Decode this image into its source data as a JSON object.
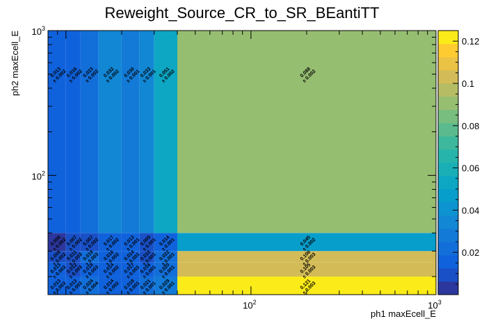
{
  "chart_data": {
    "type": "heatmap",
    "title": "Reweight_Source_CR_to_SR_BEantiTT",
    "xlabel": "ph1 maxEcell_E",
    "ylabel": "ph2 maxEcell_E",
    "xscale": "log",
    "yscale": "log",
    "xlim": [
      8,
      1000
    ],
    "ylim": [
      15,
      1000
    ],
    "x_ticks": [
      {
        "value": 100,
        "base": "10",
        "exp": "2"
      },
      {
        "value": 1000,
        "base": "10",
        "exp": "3"
      }
    ],
    "y_ticks": [
      {
        "value": 100,
        "base": "10",
        "exp": "2"
      },
      {
        "value": 1000,
        "base": "10",
        "exp": "3"
      }
    ],
    "x_edges": [
      8,
      10,
      12,
      15,
      20,
      25,
      30,
      40,
      1000
    ],
    "y_edges": [
      15,
      20,
      25,
      30,
      40,
      1000
    ],
    "z_min": 0,
    "z_max": 0.125,
    "colorbar_ticks": [
      "0.02",
      "0.04",
      "0.06",
      "0.08",
      "0.1",
      "0.12"
    ],
    "colorbar_tick_values": [
      0.02,
      0.04,
      0.06,
      0.08,
      0.1,
      0.12
    ],
    "cells": [
      [
        {
          "v": 0.013,
          "e": "± 0.003",
          "vt": "0.013"
        },
        {
          "v": 0.013,
          "e": "± 0.003",
          "vt": "0.013"
        },
        {
          "v": 0.024,
          "e": "± 0.004",
          "vt": "0.024"
        },
        {
          "v": 0.014,
          "e": "± 0.002",
          "vt": "0.014"
        },
        {
          "v": 0.018,
          "e": "± 0.001",
          "vt": "0.018"
        },
        {
          "v": 0.021,
          "e": "± 0.001",
          "vt": "0.021"
        },
        {
          "v": 0.029,
          "e": "± 0.001",
          "vt": "0.029"
        },
        {
          "v": 0.121,
          "e": "± 0.003",
          "vt": "0.121"
        }
      ],
      [
        {
          "v": 0.013,
          "e": "± 0.003",
          "vt": "0.013"
        },
        {
          "v": 0.012,
          "e": "± 0.003",
          "vt": "0.012"
        },
        {
          "v": 0.018,
          "e": "± 0.003",
          "vt": "0.018"
        },
        {
          "v": 0.014,
          "e": "± 0.002",
          "vt": "0.014"
        },
        {
          "v": 0.017,
          "e": "± 0.001",
          "vt": "0.017"
        },
        {
          "v": 0.016,
          "e": "± 0.001",
          "vt": "0.016"
        },
        {
          "v": 0.02,
          "e": "± 0.001",
          "vt": "0.020"
        },
        {
          "v": 0.105,
          "e": "± 0.003",
          "vt": "0.105"
        }
      ],
      [
        {
          "v": 0.008,
          "e": "± 0.002",
          "vt": "0.008"
        },
        {
          "v": 0.011,
          "e": "± 0.003",
          "vt": "0.011"
        },
        {
          "v": 0.019,
          "e": "± 0.003",
          "vt": "0.019"
        },
        {
          "v": 0.016,
          "e": "± 0.002",
          "vt": "0.016"
        },
        {
          "v": 0.014,
          "e": "± 0.001",
          "vt": "0.014"
        },
        {
          "v": 0.01,
          "e": "± 0.001",
          "vt": "0.010"
        },
        {
          "v": 0.022,
          "e": "± 0.001",
          "vt": "0.022"
        },
        {
          "v": 0.106,
          "e": "± 0.003",
          "vt": "0.106"
        }
      ],
      [
        {
          "v": 0.006,
          "e": "± 0.002",
          "vt": "0.006"
        },
        {
          "v": 0.007,
          "e": "± 0.002",
          "vt": "0.007"
        },
        {
          "v": 0.007,
          "e": "± 0.002",
          "vt": "0.007"
        },
        {
          "v": 0.017,
          "e": "± 0.002",
          "vt": "0.017"
        },
        {
          "v": 0.013,
          "e": "± 0.001",
          "vt": "0.013"
        },
        {
          "v": 0.009,
          "e": "± 0.001",
          "vt": "0.009"
        },
        {
          "v": 0.014,
          "e": "± 0.001",
          "vt": "0.014"
        },
        {
          "v": 0.045,
          "e": "± 0.002",
          "vt": "0.045"
        }
      ],
      [
        {
          "v": 0.013,
          "e": "± 0.002",
          "vt": "0.013"
        },
        {
          "v": 0.016,
          "e": "± 0.002",
          "vt": "0.016"
        },
        {
          "v": 0.023,
          "e": "± 0.002",
          "vt": "0.023"
        },
        {
          "v": 0.032,
          "e": "± 0.002",
          "vt": "0.032"
        },
        {
          "v": 0.03,
          "e": "± 0.001",
          "vt": "0.030"
        },
        {
          "v": 0.033,
          "e": "± 0.001",
          "vt": "0.033"
        },
        {
          "v": 0.051,
          "e": "± 0.002",
          "vt": "0.051"
        },
        {
          "v": 0.088,
          "e": "± 0.002",
          "vt": "0.088"
        }
      ]
    ]
  }
}
